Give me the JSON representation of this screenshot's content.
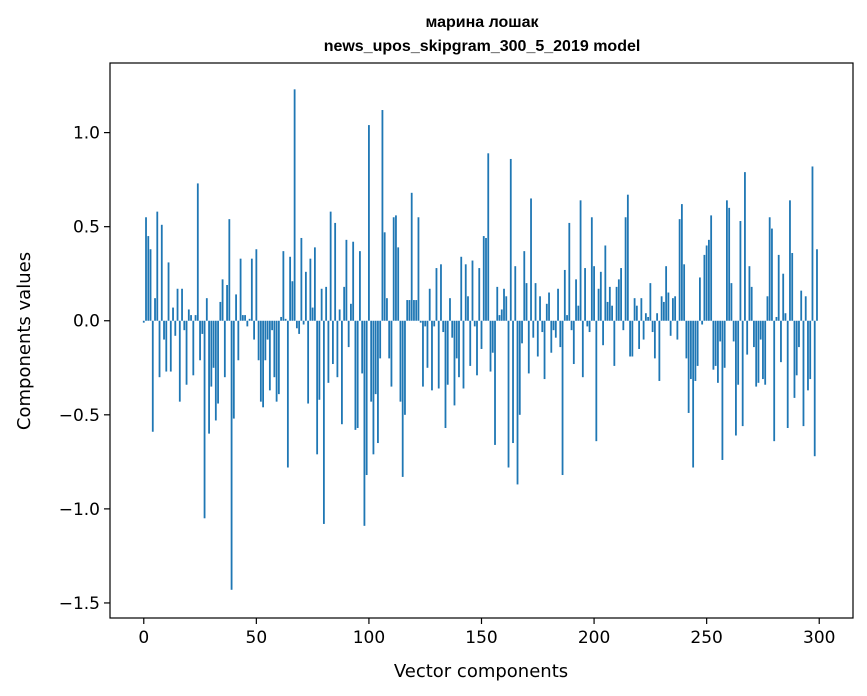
{
  "chart_data": {
    "type": "bar",
    "title_line1": "марина лошак",
    "title_line2": "news_upos_skipgram_300_5_2019 model",
    "xlabel": "Vector components",
    "ylabel": "Components values",
    "xlim": [
      -15,
      315
    ],
    "ylim": [
      -1.58,
      1.37
    ],
    "xticks": [
      0,
      50,
      100,
      150,
      200,
      250,
      300
    ],
    "xtick_labels": [
      "0",
      "50",
      "100",
      "150",
      "200",
      "250",
      "300"
    ],
    "yticks": [
      -1.5,
      -1.0,
      -0.5,
      0.0,
      0.5,
      1.0
    ],
    "ytick_labels": [
      "−1.5",
      "−1.0",
      "−0.5",
      "0.0",
      "0.5",
      "1.0"
    ],
    "bar_color": "#1f77b4",
    "values": [
      -0.01,
      0.55,
      0.45,
      0.38,
      -0.59,
      0.12,
      0.58,
      -0.3,
      0.51,
      -0.1,
      -0.27,
      0.31,
      -0.27,
      0.07,
      -0.08,
      0.17,
      -0.43,
      0.17,
      -0.05,
      -0.34,
      0.06,
      0.03,
      -0.29,
      0.03,
      0.73,
      -0.21,
      -0.07,
      -1.05,
      0.12,
      -0.6,
      -0.35,
      -0.25,
      -0.53,
      -0.44,
      0.1,
      0.22,
      -0.3,
      0.19,
      0.54,
      -1.43,
      -0.52,
      0.14,
      -0.21,
      0.33,
      0.03,
      0.03,
      -0.03,
      0.01,
      0.33,
      -0.1,
      0.38,
      -0.21,
      -0.43,
      -0.46,
      -0.21,
      -0.1,
      -0.37,
      -0.05,
      -0.3,
      -0.43,
      -0.39,
      0.02,
      0.37,
      0.01,
      -0.78,
      0.34,
      0.21,
      1.23,
      -0.04,
      -0.07,
      0.44,
      -0.02,
      0.26,
      -0.44,
      0.33,
      0.07,
      0.39,
      -0.71,
      -0.42,
      0.17,
      -1.08,
      0.18,
      -0.33,
      0.58,
      -0.23,
      0.52,
      -0.3,
      0.06,
      -0.55,
      0.18,
      0.43,
      -0.14,
      0.09,
      0.42,
      -0.58,
      -0.57,
      0.37,
      -0.28,
      -1.09,
      -0.82,
      1.04,
      -0.43,
      -0.71,
      -0.39,
      -0.65,
      -0.2,
      1.12,
      0.47,
      0.12,
      -0.2,
      -0.35,
      0.55,
      0.56,
      0.39,
      -0.43,
      -0.83,
      -0.5,
      0.11,
      0.11,
      0.68,
      0.11,
      0.11,
      0.55,
      -0.01,
      -0.35,
      -0.03,
      -0.25,
      0.17,
      -0.37,
      -0.03,
      0.28,
      -0.36,
      0.3,
      -0.06,
      -0.57,
      -0.34,
      0.12,
      -0.09,
      -0.45,
      -0.2,
      -0.3,
      0.34,
      -0.36,
      0.3,
      0.13,
      -0.24,
      0.32,
      -0.03,
      -0.29,
      0.28,
      -0.15,
      0.45,
      0.44,
      0.89,
      -0.27,
      -0.17,
      -0.66,
      0.18,
      0.03,
      0.06,
      0.17,
      0.13,
      -0.78,
      0.86,
      -0.65,
      0.29,
      -0.87,
      -0.5,
      -0.12,
      0.37,
      0.2,
      -0.28,
      0.65,
      -0.09,
      0.2,
      -0.19,
      0.13,
      -0.06,
      -0.31,
      0.09,
      0.15,
      -0.17,
      -0.05,
      -0.09,
      0.17,
      -0.14,
      -0.82,
      0.27,
      0.03,
      0.52,
      -0.05,
      -0.23,
      0.22,
      0.08,
      0.64,
      -0.3,
      0.28,
      -0.03,
      -0.06,
      0.55,
      0.29,
      -0.64,
      0.17,
      0.26,
      -0.13,
      0.4,
      0.1,
      0.18,
      0.08,
      -0.24,
      0.18,
      0.22,
      0.28,
      -0.05,
      0.55,
      0.67,
      -0.19,
      -0.19,
      0.12,
      0.08,
      -0.15,
      0.12,
      -0.1,
      0.04,
      0.02,
      0.2,
      -0.06,
      -0.2,
      0.04,
      -0.32,
      0.13,
      0.1,
      0.29,
      0.15,
      -0.08,
      0.12,
      0.13,
      -0.1,
      0.54,
      0.62,
      0.3,
      -0.2,
      -0.49,
      -0.31,
      -0.78,
      -0.32,
      -0.24,
      0.23,
      -0.02,
      0.35,
      0.4,
      0.43,
      0.56,
      -0.26,
      -0.24,
      -0.33,
      -0.11,
      -0.74,
      -0.25,
      0.64,
      0.6,
      0.2,
      -0.11,
      -0.61,
      -0.34,
      0.53,
      -0.56,
      0.79,
      -0.18,
      0.29,
      0.18,
      -0.14,
      -0.35,
      -0.33,
      -0.1,
      -0.31,
      -0.34,
      0.13,
      0.55,
      0.49,
      -0.64,
      0.02,
      0.35,
      -0.22,
      0.25,
      0.04,
      -0.57,
      0.64,
      0.36,
      -0.41,
      -0.29,
      -0.14,
      0.16,
      -0.56,
      0.13,
      -0.37,
      -0.31,
      0.82,
      -0.72,
      0.38
    ]
  }
}
